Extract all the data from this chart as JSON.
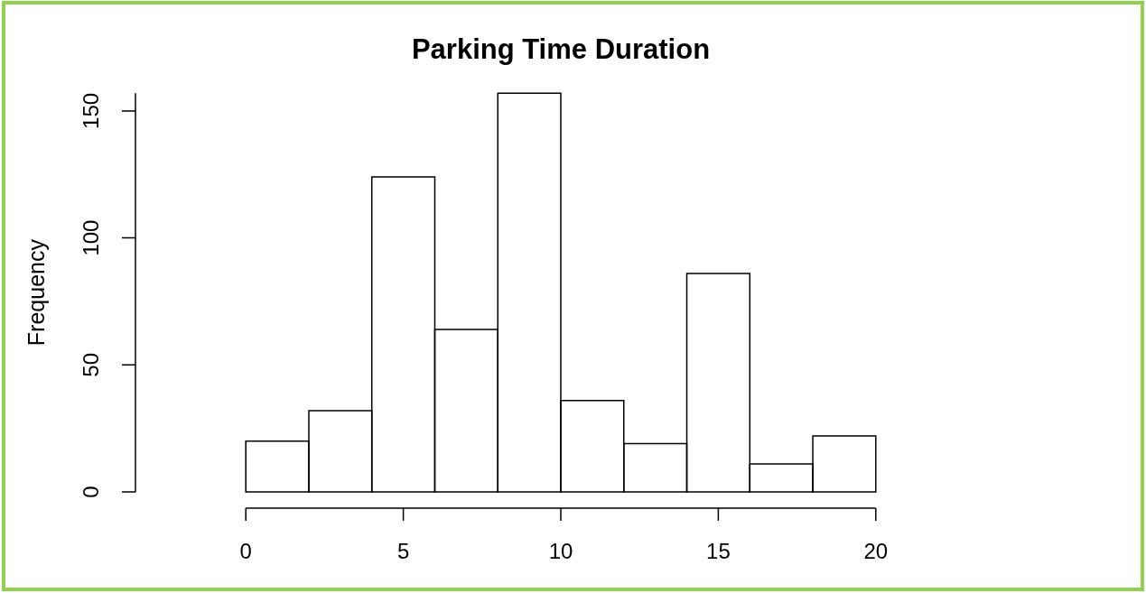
{
  "chart_data": {
    "type": "histogram",
    "title": "Parking Time Duration",
    "ylabel": "Frequency",
    "bins": [
      0,
      2,
      4,
      6,
      8,
      10,
      12,
      14,
      16,
      18,
      20
    ],
    "values": [
      20,
      32,
      124,
      64,
      157,
      36,
      19,
      86,
      11,
      22
    ],
    "color": "#000000",
    "xlim": [
      0,
      20
    ],
    "xticks": [
      0,
      5,
      10,
      15,
      20
    ],
    "ylim": [
      0,
      157
    ],
    "yticks": [
      0,
      50,
      100,
      150
    ]
  }
}
